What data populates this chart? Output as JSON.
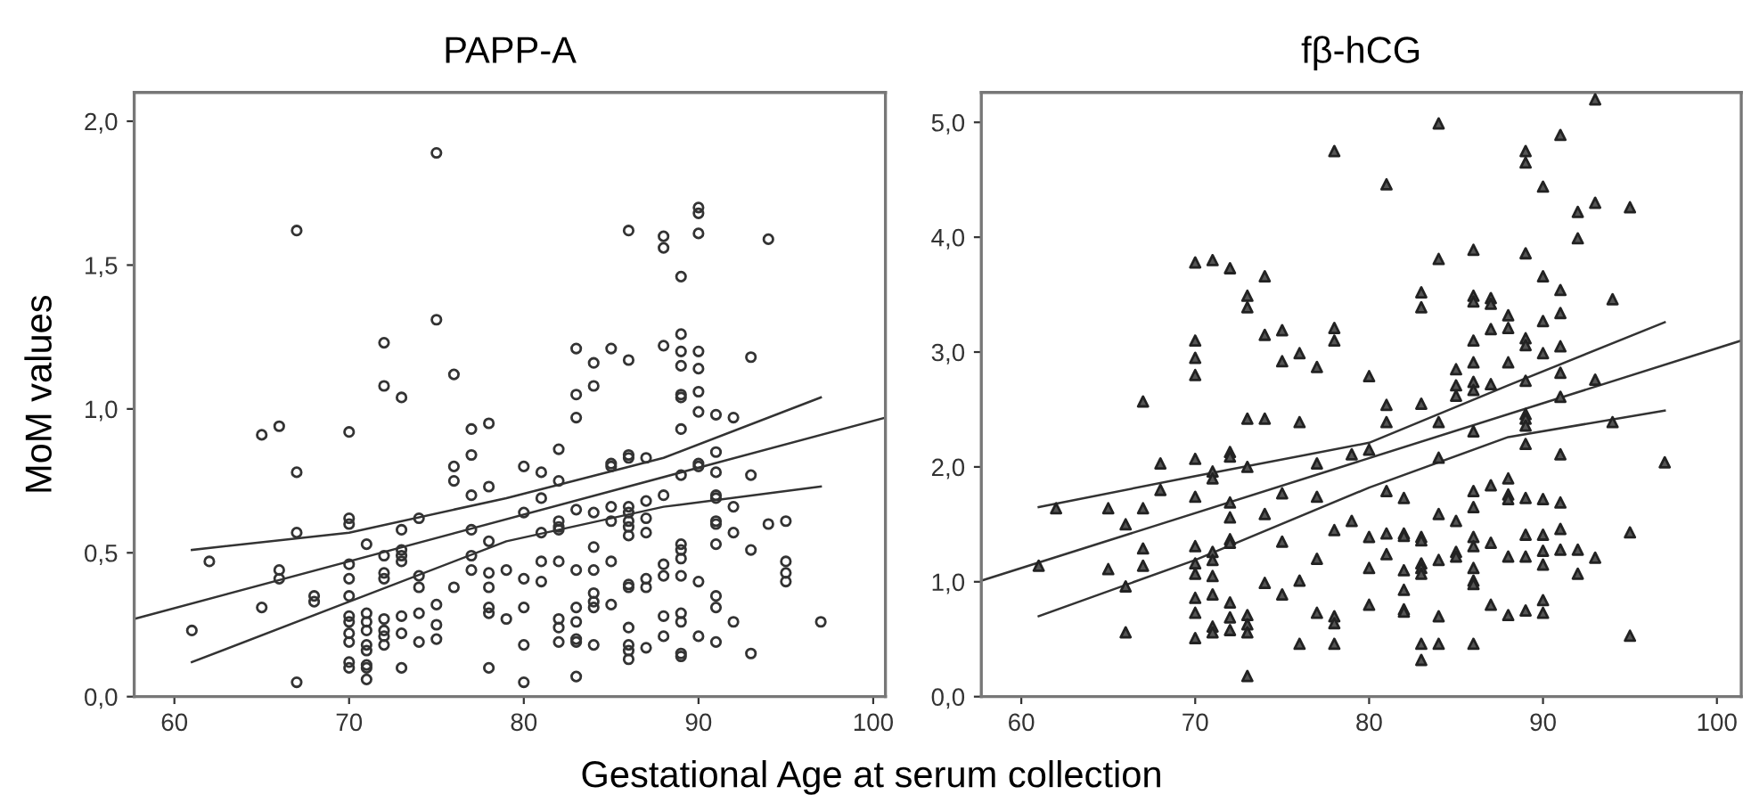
{
  "chart_data": [
    {
      "type": "scatter",
      "title": "PAPP-A",
      "ylabel": "MoM values",
      "xlabel": "Gestational Age at serum collection",
      "grid": false,
      "xlim": [
        57.7,
        100.7
      ],
      "ylim": [
        0,
        2.1
      ],
      "xticks": [
        60,
        70,
        80,
        90,
        100
      ],
      "yticks": [
        {
          "value": 0,
          "label": "0,0"
        },
        {
          "value": 0.5,
          "label": "0,5"
        },
        {
          "value": 1,
          "label": "1,0"
        },
        {
          "value": 1.5,
          "label": "1,5"
        },
        {
          "value": 2,
          "label": "2,0"
        }
      ],
      "series": [
        {
          "marker": "circle",
          "color": "#333333",
          "x": [
            61,
            62,
            65,
            65,
            66,
            66,
            66,
            67,
            67,
            67,
            67,
            68,
            68,
            70,
            70,
            70,
            70,
            70,
            70,
            70,
            70,
            70,
            70,
            70,
            70,
            71,
            71,
            71,
            71,
            71,
            71,
            71,
            71,
            71,
            72,
            72,
            72,
            72,
            72,
            72,
            72,
            72,
            72,
            73,
            73,
            73,
            73,
            73,
            73,
            73,
            73,
            74,
            74,
            74,
            74,
            74,
            75,
            75,
            75,
            75,
            75,
            76,
            76,
            76,
            76,
            77,
            77,
            77,
            77,
            77,
            77,
            78,
            78,
            78,
            78,
            78,
            78,
            78,
            78,
            79,
            79,
            80,
            80,
            80,
            80,
            80,
            80,
            81,
            81,
            81,
            81,
            81,
            82,
            82,
            82,
            82,
            82,
            82,
            82,
            82,
            82,
            83,
            83,
            83,
            83,
            83,
            83,
            83,
            83,
            83,
            83,
            84,
            84,
            84,
            84,
            84,
            84,
            84,
            84,
            84,
            85,
            85,
            85,
            85,
            85,
            85,
            85,
            86,
            86,
            86,
            86,
            86,
            86,
            86,
            86,
            86,
            86,
            86,
            86,
            86,
            86,
            86,
            87,
            87,
            87,
            87,
            87,
            87,
            87,
            88,
            88,
            88,
            88,
            88,
            88,
            88,
            88,
            89,
            89,
            89,
            89,
            89,
            89,
            89,
            89,
            89,
            89,
            89,
            89,
            89,
            89,
            89,
            89,
            90,
            90,
            90,
            90,
            90,
            90,
            90,
            90,
            90,
            90,
            90,
            91,
            91,
            91,
            91,
            91,
            91,
            91,
            91,
            91,
            91,
            91,
            92,
            92,
            92,
            92,
            93,
            93,
            93,
            93,
            94,
            94,
            95,
            95,
            95,
            95,
            97
          ],
          "values": [
            0.23,
            0.47,
            0.91,
            0.31,
            0.94,
            0.44,
            0.41,
            1.62,
            0.78,
            0.57,
            0.05,
            0.35,
            0.33,
            0.92,
            0.62,
            0.6,
            0.46,
            0.41,
            0.35,
            0.28,
            0.26,
            0.22,
            0.19,
            0.12,
            0.1,
            0.53,
            0.29,
            0.26,
            0.23,
            0.18,
            0.16,
            0.11,
            0.1,
            0.06,
            1.23,
            1.08,
            0.49,
            0.43,
            0.41,
            0.27,
            0.23,
            0.21,
            0.18,
            1.04,
            0.58,
            0.51,
            0.49,
            0.47,
            0.28,
            0.22,
            0.1,
            0.62,
            0.42,
            0.38,
            0.29,
            0.19,
            1.89,
            1.31,
            0.32,
            0.25,
            0.2,
            1.12,
            0.8,
            0.75,
            0.38,
            0.93,
            0.84,
            0.7,
            0.58,
            0.49,
            0.44,
            0.95,
            0.73,
            0.54,
            0.43,
            0.38,
            0.31,
            0.29,
            0.1,
            0.44,
            0.27,
            0.8,
            0.64,
            0.41,
            0.31,
            0.18,
            0.05,
            0.78,
            0.69,
            0.57,
            0.47,
            0.4,
            0.86,
            0.75,
            0.61,
            0.59,
            0.58,
            0.47,
            0.27,
            0.24,
            0.19,
            1.21,
            1.05,
            0.97,
            0.65,
            0.44,
            0.31,
            0.26,
            0.2,
            0.19,
            0.07,
            1.16,
            1.08,
            0.64,
            0.52,
            0.44,
            0.36,
            0.33,
            0.31,
            0.18,
            1.21,
            0.81,
            0.8,
            0.66,
            0.61,
            0.47,
            0.32,
            1.62,
            1.17,
            0.84,
            0.83,
            0.66,
            0.64,
            0.61,
            0.59,
            0.56,
            0.39,
            0.38,
            0.24,
            0.18,
            0.16,
            0.13,
            0.83,
            0.68,
            0.62,
            0.57,
            0.41,
            0.38,
            0.17,
            1.6,
            1.56,
            1.22,
            0.7,
            0.46,
            0.42,
            0.28,
            0.21,
            1.46,
            1.26,
            1.2,
            1.15,
            1.05,
            1.04,
            0.93,
            0.77,
            0.53,
            0.51,
            0.48,
            0.42,
            0.29,
            0.26,
            0.15,
            0.14,
            1.7,
            1.68,
            1.61,
            1.2,
            1.14,
            1.06,
            0.99,
            0.81,
            0.8,
            0.4,
            0.21,
            0.98,
            0.85,
            0.78,
            0.7,
            0.69,
            0.61,
            0.6,
            0.53,
            0.35,
            0.31,
            0.19,
            0.97,
            0.66,
            0.57,
            0.26,
            1.18,
            0.77,
            0.51,
            0.15,
            1.59,
            0.6,
            0.61,
            0.47,
            0.43,
            0.4,
            0.26
          ]
        },
        {
          "type": "line",
          "color": "#333333",
          "x": [
            57.7,
            100.7
          ],
          "values": [
            0.27,
            0.97
          ]
        },
        {
          "type": "line",
          "color": "#333333",
          "x": [
            61,
            70,
            79,
            88,
            97
          ],
          "values": [
            0.51,
            0.57,
            0.69,
            0.83,
            1.04
          ]
        },
        {
          "type": "line",
          "color": "#333333",
          "x": [
            61,
            70,
            79,
            88,
            97
          ],
          "values": [
            0.12,
            0.33,
            0.54,
            0.66,
            0.73
          ]
        }
      ]
    },
    {
      "type": "scatter",
      "title": "fβ-hCG",
      "grid": false,
      "xlim": [
        57.7,
        101.4
      ],
      "ylim": [
        0,
        5.26
      ],
      "xticks": [
        60,
        70,
        80,
        90,
        100
      ],
      "yticks": [
        {
          "value": 0,
          "label": "0,0"
        },
        {
          "value": 1,
          "label": "1,0"
        },
        {
          "value": 2,
          "label": "2,0"
        },
        {
          "value": 3,
          "label": "3,0"
        },
        {
          "value": 4,
          "label": "4,0"
        },
        {
          "value": 5,
          "label": "5,0"
        }
      ],
      "series": [
        {
          "marker": "triangle",
          "color": "#555555",
          "x": [
            61,
            62,
            65,
            65,
            66,
            66,
            66,
            67,
            67,
            67,
            67,
            68,
            68,
            70,
            70,
            70,
            70,
            70,
            70,
            70,
            70,
            70,
            70,
            70,
            70,
            71,
            71,
            71,
            71,
            71,
            71,
            71,
            71,
            71,
            72,
            72,
            72,
            72,
            72,
            72,
            72,
            72,
            72,
            72,
            73,
            73,
            73,
            73,
            73,
            73,
            73,
            73,
            74,
            74,
            74,
            74,
            74,
            75,
            75,
            75,
            75,
            75,
            76,
            76,
            76,
            76,
            77,
            77,
            77,
            77,
            77,
            78,
            78,
            78,
            78,
            78,
            78,
            78,
            79,
            79,
            80,
            80,
            80,
            80,
            80,
            81,
            81,
            81,
            81,
            81,
            81,
            82,
            82,
            82,
            82,
            82,
            82,
            82,
            83,
            83,
            83,
            83,
            83,
            83,
            83,
            83,
            83,
            83,
            84,
            84,
            84,
            84,
            84,
            84,
            84,
            84,
            85,
            85,
            85,
            85,
            85,
            85,
            86,
            86,
            86,
            86,
            86,
            86,
            86,
            86,
            86,
            86,
            86,
            86,
            86,
            86,
            86,
            86,
            87,
            87,
            87,
            87,
            87,
            87,
            87,
            88,
            88,
            88,
            88,
            88,
            88,
            88,
            88,
            89,
            89,
            89,
            89,
            89,
            89,
            89,
            89,
            89,
            89,
            89,
            89,
            89,
            89,
            90,
            90,
            90,
            90,
            90,
            90,
            90,
            90,
            90,
            90,
            91,
            91,
            91,
            91,
            91,
            91,
            91,
            91,
            91,
            91,
            92,
            92,
            92,
            92,
            93,
            93,
            93,
            93,
            94,
            94,
            95,
            95,
            95,
            97
          ],
          "values": [
            1.14,
            1.64,
            1.64,
            1.11,
            1.5,
            0.96,
            0.56,
            2.57,
            1.64,
            1.29,
            1.14,
            2.03,
            1.8,
            3.78,
            3.1,
            2.95,
            2.8,
            2.07,
            1.74,
            1.31,
            1.16,
            1.07,
            0.86,
            0.73,
            0.51,
            3.8,
            1.96,
            1.9,
            1.26,
            1.19,
            1.05,
            0.89,
            0.61,
            0.56,
            3.73,
            2.13,
            2.09,
            1.69,
            1.56,
            1.37,
            1.34,
            0.82,
            0.69,
            0.58,
            3.49,
            3.39,
            2.42,
            2.0,
            0.71,
            0.63,
            0.56,
            0.18,
            3.66,
            3.15,
            2.42,
            1.59,
            0.99,
            3.19,
            2.92,
            1.77,
            1.35,
            0.89,
            2.99,
            2.39,
            1.01,
            0.46,
            2.87,
            2.03,
            1.74,
            1.2,
            0.73,
            4.75,
            3.21,
            3.1,
            1.45,
            0.7,
            0.64,
            0.46,
            2.11,
            1.53,
            2.79,
            2.15,
            1.39,
            1.12,
            0.8,
            4.46,
            2.54,
            2.39,
            1.79,
            1.42,
            1.24,
            1.73,
            1.42,
            1.4,
            1.1,
            0.93,
            0.76,
            0.74,
            3.52,
            3.39,
            2.55,
            1.39,
            1.36,
            1.16,
            1.12,
            1.07,
            0.46,
            0.32,
            4.99,
            3.81,
            2.39,
            2.08,
            1.59,
            1.19,
            0.7,
            0.46,
            2.85,
            2.71,
            2.62,
            1.53,
            1.26,
            1.22,
            3.89,
            3.49,
            3.44,
            3.1,
            2.91,
            2.74,
            2.67,
            2.31,
            1.79,
            1.65,
            1.39,
            1.31,
            1.12,
            1.01,
            0.98,
            0.46,
            3.47,
            3.42,
            3.2,
            2.72,
            1.84,
            1.34,
            0.8,
            3.32,
            3.21,
            2.91,
            1.9,
            1.76,
            1.72,
            1.22,
            0.71,
            4.75,
            4.65,
            3.86,
            3.12,
            3.06,
            2.75,
            2.46,
            2.42,
            2.36,
            2.2,
            1.73,
            1.41,
            1.22,
            0.75,
            4.44,
            3.66,
            3.27,
            2.99,
            1.72,
            1.41,
            1.27,
            1.15,
            0.84,
            0.73,
            4.89,
            3.54,
            3.34,
            3.05,
            2.82,
            2.61,
            2.11,
            1.69,
            1.46,
            1.28,
            4.22,
            3.99,
            1.28,
            1.07,
            5.2,
            4.3,
            2.76,
            1.21,
            3.46,
            2.39,
            4.26,
            1.43,
            0.53,
            2.04
          ]
        },
        {
          "type": "line",
          "color": "#333333",
          "x": [
            57.7,
            101.4
          ],
          "values": [
            1.01,
            3.1
          ]
        },
        {
          "type": "line",
          "color": "#333333",
          "x": [
            61,
            70,
            80,
            88,
            97
          ],
          "values": [
            1.65,
            1.92,
            2.21,
            2.71,
            3.26
          ]
        },
        {
          "type": "line",
          "color": "#333333",
          "x": [
            61,
            70,
            80,
            88,
            97
          ],
          "values": [
            0.7,
            1.19,
            1.82,
            2.26,
            2.49
          ]
        }
      ]
    }
  ]
}
